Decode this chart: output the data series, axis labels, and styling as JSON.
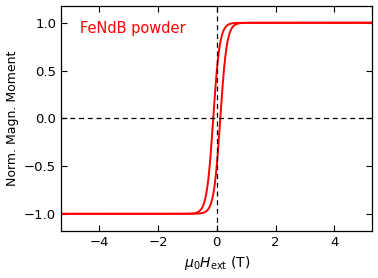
{
  "label": "FeNdB powder",
  "label_color": "#ff0000",
  "line_color": "#ff0000",
  "line_width": 1.4,
  "xlim": [
    -5.3,
    5.3
  ],
  "ylim": [
    -1.18,
    1.18
  ],
  "xticks": [
    -4,
    -2,
    0,
    2,
    4
  ],
  "yticks": [
    -1.0,
    -0.5,
    0.0,
    0.5,
    1.0
  ],
  "coercivity": 0.12,
  "slope_factor": 4.5,
  "background_color": "#ffffff",
  "figsize": [
    3.78,
    2.78
  ],
  "dpi": 100
}
